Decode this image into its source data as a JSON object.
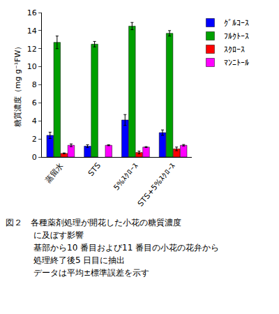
{
  "chart_data": {
    "type": "bar",
    "y_label": "糖質濃度（mg g⁻¹FW）",
    "categories": [
      "蒸留水",
      "STS",
      "5%ｽｸﾛｰｽ",
      "STS+5%ｽｸﾛｰｽ"
    ],
    "series": [
      {
        "name": "ｸﾞﾙｺｰｽ",
        "color": "#0000ff",
        "values": [
          2.4,
          1.2,
          4.1,
          2.7
        ],
        "errors": [
          0.35,
          0.15,
          0.6,
          0.3
        ]
      },
      {
        "name": "ﾌﾙｸﾄｰｽ",
        "color": "#00a000",
        "values": [
          12.7,
          12.5,
          14.5,
          13.7
        ],
        "errors": [
          0.7,
          0.3,
          0.4,
          0.3
        ]
      },
      {
        "name": "ｽｸﾛｰｽ",
        "color": "#ff0000",
        "values": [
          0.4,
          null,
          0.5,
          0.9
        ],
        "errors": [
          0.05,
          null,
          0.15,
          0.2
        ]
      },
      {
        "name": "ﾏﾝﾆﾄｰﾙ",
        "color": "#ff00ff",
        "values": [
          1.3,
          1.3,
          1.1,
          1.3
        ],
        "errors": [
          0.15,
          0.05,
          0.05,
          0.08
        ]
      }
    ],
    "ylim": [
      0,
      16
    ],
    "yticks": [
      0,
      2,
      4,
      6,
      8,
      10,
      12,
      14,
      16
    ],
    "grid": false,
    "legend": "upper right",
    "caption": [
      "図２　各種薬剤処理が開花した小花の糖質濃度",
      "に及ぼす影響",
      "基部から10 番目および11 番目の小花の花弁から",
      "処理終了後5 日目に抽出",
      "データは平均±標準誤差を示す"
    ]
  }
}
